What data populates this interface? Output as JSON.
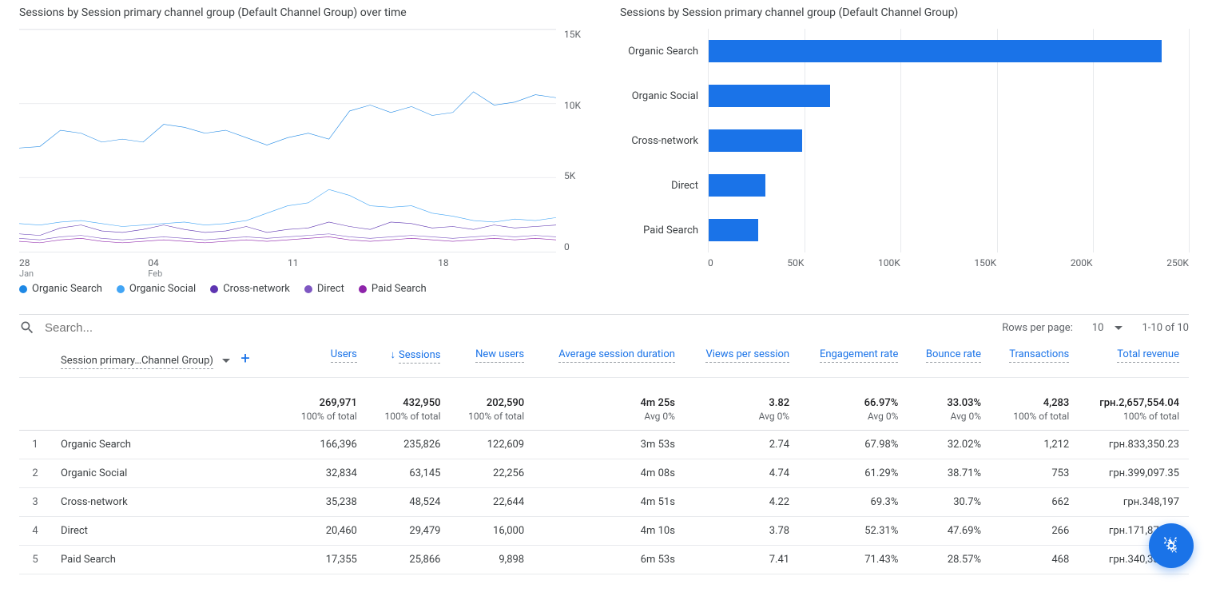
{
  "colors": {
    "series": [
      "#1e88e5",
      "#42a5f5",
      "#5e35b1",
      "#7e57c2",
      "#8e24aa"
    ],
    "bar": "#1a73e8",
    "grid": "#e8eaed",
    "text_muted": "#5f6368"
  },
  "line_chart": {
    "title": "Sessions by Session primary channel group (Default Channel Group) over time",
    "y_ticks": [
      "15K",
      "10K",
      "5K",
      "0"
    ],
    "y_max": 15000,
    "x_ticks": [
      {
        "day": "28",
        "month": "Jan"
      },
      {
        "day": "04",
        "month": "Feb"
      },
      {
        "day": "11",
        "month": ""
      },
      {
        "day": "18",
        "month": ""
      }
    ],
    "series": [
      {
        "name": "Organic Search",
        "color_index": 0,
        "values": [
          7000,
          7100,
          8200,
          8000,
          7400,
          7600,
          7400,
          8600,
          8400,
          8000,
          8200,
          7700,
          7200,
          7700,
          8000,
          7600,
          9500,
          9900,
          9400,
          9800,
          9200,
          9400,
          10800,
          9900,
          10100,
          10600,
          10400
        ]
      },
      {
        "name": "Organic Social",
        "color_index": 1,
        "values": [
          1900,
          1800,
          2000,
          2100,
          1900,
          1700,
          1800,
          1900,
          2000,
          1800,
          1900,
          2100,
          2600,
          3100,
          3300,
          4200,
          3800,
          3100,
          3000,
          3100,
          2600,
          2400,
          2100,
          2000,
          2200,
          2100,
          2300
        ]
      },
      {
        "name": "Cross-network",
        "color_index": 2,
        "values": [
          1200,
          1100,
          1600,
          1800,
          1400,
          1300,
          1500,
          1800,
          1500,
          1300,
          1400,
          1700,
          1300,
          1500,
          1600,
          2000,
          1700,
          1500,
          2000,
          1900,
          1600,
          1700,
          1500,
          1800,
          1600,
          1700,
          1800
        ]
      },
      {
        "name": "Direct",
        "color_index": 3,
        "values": [
          900,
          800,
          1000,
          1100,
          900,
          800,
          900,
          1000,
          900,
          800,
          900,
          1000,
          900,
          1000,
          1100,
          1200,
          1000,
          900,
          1000,
          1100,
          1000,
          900,
          1000,
          1100,
          1000,
          1100,
          1000
        ]
      },
      {
        "name": "Paid Search",
        "color_index": 4,
        "values": [
          700,
          600,
          800,
          900,
          700,
          600,
          700,
          800,
          700,
          600,
          700,
          800,
          700,
          800,
          900,
          1000,
          800,
          700,
          800,
          900,
          800,
          700,
          800,
          900,
          800,
          900,
          800
        ]
      }
    ]
  },
  "bar_chart": {
    "title": "Sessions by Session primary channel group (Default Channel Group)",
    "x_ticks": [
      "0",
      "50K",
      "100K",
      "150K",
      "200K",
      "250K"
    ],
    "x_max": 250000,
    "bars": [
      {
        "label": "Organic Search",
        "value": 235826
      },
      {
        "label": "Organic Social",
        "value": 63145
      },
      {
        "label": "Cross-network",
        "value": 48524
      },
      {
        "label": "Direct",
        "value": 29479
      },
      {
        "label": "Paid Search",
        "value": 25866
      }
    ]
  },
  "search": {
    "placeholder": "Search..."
  },
  "pager": {
    "rows_label": "Rows per page:",
    "rows_value": "10",
    "range": "1-10 of 10"
  },
  "table": {
    "dimension_label": "Session primary…Channel Group)",
    "sort_column": "Sessions",
    "columns": [
      "Users",
      "Sessions",
      "New users",
      "Average session duration",
      "Views per session",
      "Engagement rate",
      "Bounce rate",
      "Transactions",
      "Total revenue"
    ],
    "totals": {
      "values": [
        "269,971",
        "432,950",
        "202,590",
        "4m 25s",
        "3.82",
        "66.97%",
        "33.03%",
        "4,283",
        "грн.2,657,554.04"
      ],
      "subs": [
        "100% of total",
        "100% of total",
        "100% of total",
        "Avg 0%",
        "Avg 0%",
        "Avg 0%",
        "Avg 0%",
        "100% of total",
        "100% of total"
      ]
    },
    "rows": [
      {
        "idx": "1",
        "dim": "Organic Search",
        "cells": [
          "166,396",
          "235,826",
          "122,609",
          "3m 53s",
          "2.74",
          "67.98%",
          "32.02%",
          "1,212",
          "грн.833,350.23"
        ]
      },
      {
        "idx": "2",
        "dim": "Organic Social",
        "cells": [
          "32,834",
          "63,145",
          "22,256",
          "4m 08s",
          "4.74",
          "61.29%",
          "38.71%",
          "753",
          "грн.399,097.35"
        ]
      },
      {
        "idx": "3",
        "dim": "Cross-network",
        "cells": [
          "35,238",
          "48,524",
          "22,644",
          "4m 51s",
          "4.22",
          "69.3%",
          "30.7%",
          "662",
          "грн.348,197"
        ]
      },
      {
        "idx": "4",
        "dim": "Direct",
        "cells": [
          "20,460",
          "29,479",
          "16,000",
          "4m 10s",
          "3.78",
          "52.31%",
          "47.69%",
          "266",
          "грн.171,874.25"
        ]
      },
      {
        "idx": "5",
        "dim": "Paid Search",
        "cells": [
          "17,355",
          "25,866",
          "9,898",
          "6m 53s",
          "7.41",
          "71.43%",
          "28.57%",
          "468",
          "грн.340,332.05"
        ]
      }
    ]
  }
}
